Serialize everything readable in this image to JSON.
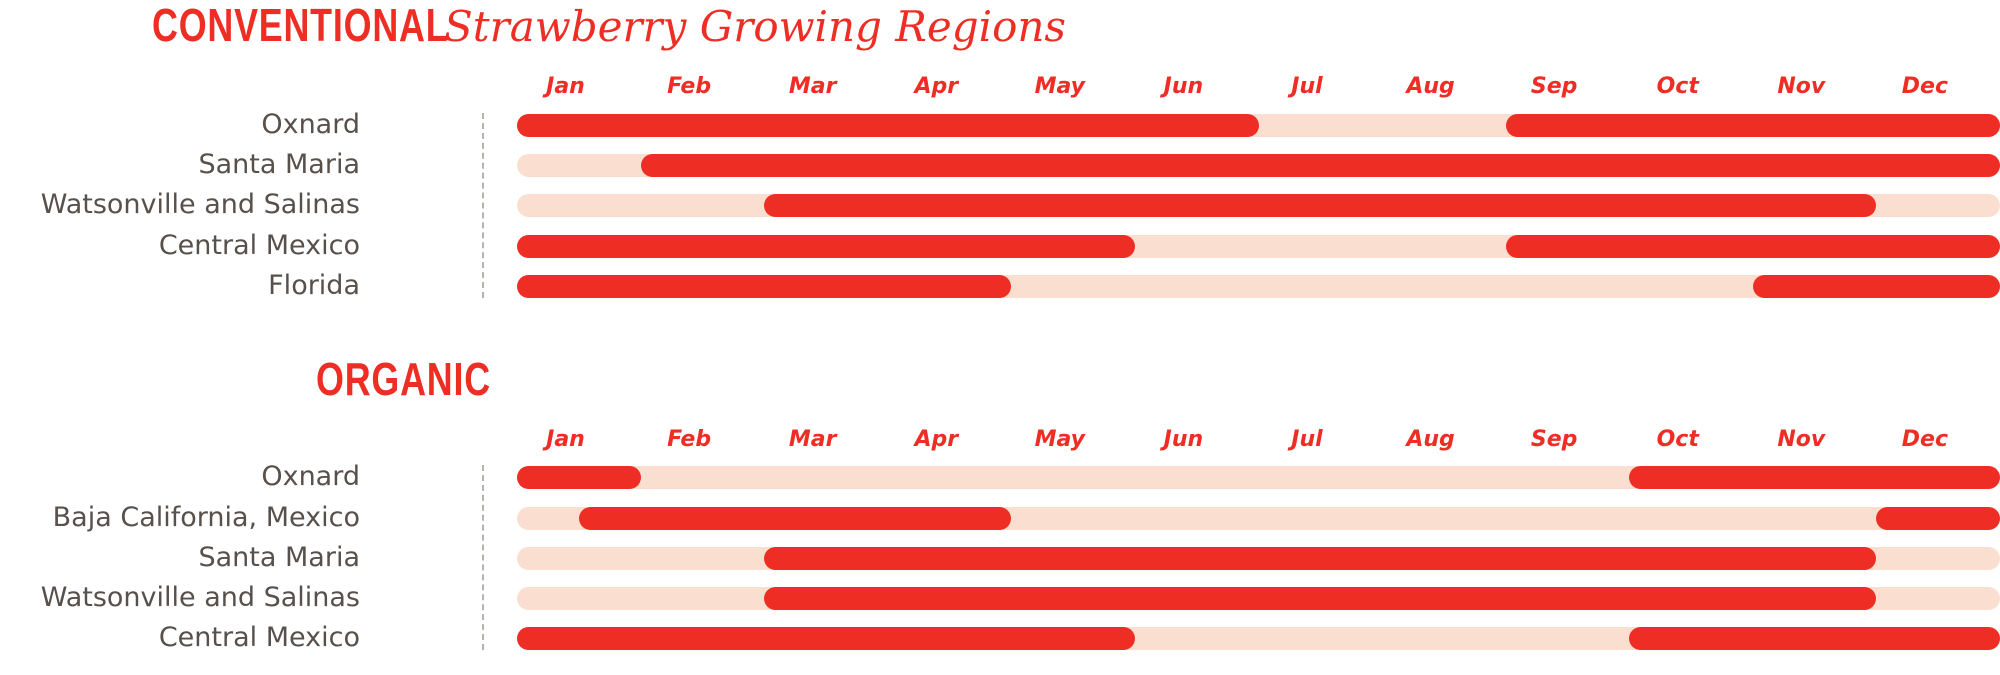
{
  "colors": {
    "accent": "#ee2e24",
    "track": "#fadfd0",
    "label": "#58504b"
  },
  "chart_data": [
    {
      "type": "gantt",
      "title_caps": "CONVENTIONAL",
      "title_script": "Strawberry Growing Regions",
      "months": [
        "Jan",
        "Feb",
        "Mar",
        "Apr",
        "May",
        "Jun",
        "Jul",
        "Aug",
        "Sep",
        "Oct",
        "Nov",
        "Dec"
      ],
      "xlim": [
        0,
        12
      ],
      "rows": [
        {
          "region": "Oxnard",
          "seasons": [
            [
              0,
              6
            ],
            [
              8,
              12
            ]
          ]
        },
        {
          "region": "Santa Maria",
          "seasons": [
            [
              1,
              12
            ]
          ]
        },
        {
          "region": "Watsonville and Salinas",
          "seasons": [
            [
              2,
              11
            ]
          ]
        },
        {
          "region": "Central Mexico",
          "seasons": [
            [
              0,
              5
            ],
            [
              8,
              12
            ]
          ]
        },
        {
          "region": "Florida",
          "seasons": [
            [
              0,
              4
            ],
            [
              10,
              12
            ]
          ]
        }
      ]
    },
    {
      "type": "gantt",
      "title_caps": "ORGANIC",
      "months": [
        "Jan",
        "Feb",
        "Mar",
        "Apr",
        "May",
        "Jun",
        "Jul",
        "Aug",
        "Sep",
        "Oct",
        "Nov",
        "Dec"
      ],
      "xlim": [
        0,
        12
      ],
      "rows": [
        {
          "region": "Oxnard",
          "seasons": [
            [
              0,
              1
            ],
            [
              9,
              12
            ]
          ]
        },
        {
          "region": "Baja California, Mexico",
          "seasons": [
            [
              0.5,
              4
            ],
            [
              11,
              12
            ]
          ]
        },
        {
          "region": "Santa Maria",
          "seasons": [
            [
              2,
              11
            ]
          ]
        },
        {
          "region": "Watsonville and Salinas",
          "seasons": [
            [
              2,
              11
            ]
          ]
        },
        {
          "region": "Central Mexico",
          "seasons": [
            [
              0,
              5
            ],
            [
              9,
              12
            ]
          ]
        }
      ]
    }
  ]
}
